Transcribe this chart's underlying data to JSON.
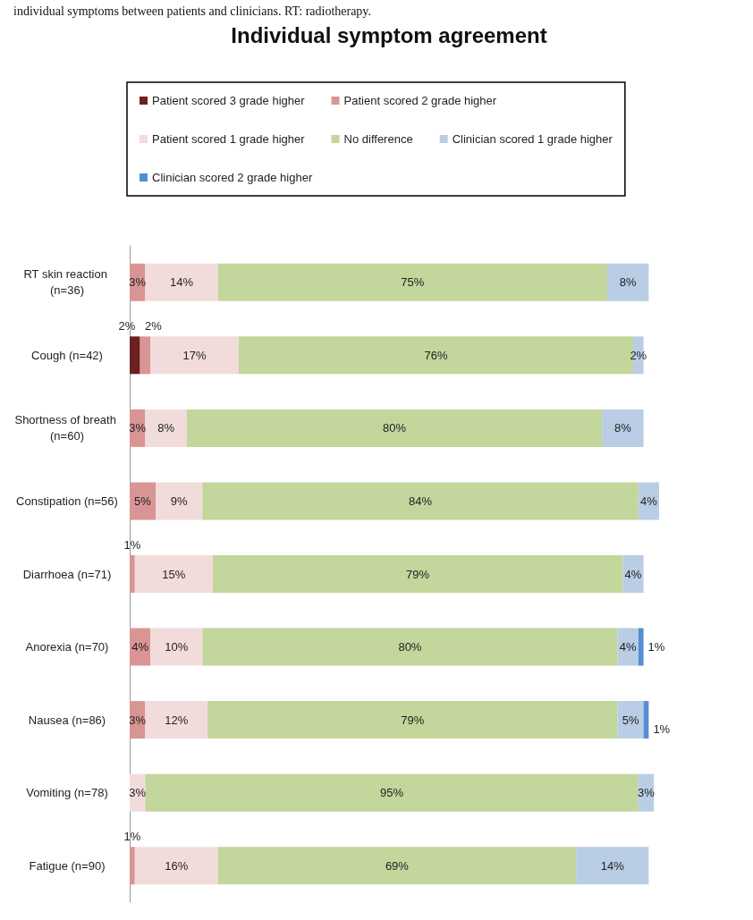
{
  "chart_data": {
    "type": "bar",
    "orientation": "horizontal",
    "stacked": true,
    "legend": "top",
    "title": "Individual symptom agreement",
    "annotations": [
      "individual symptoms between patients and clinicians. RT: radiotherapy."
    ],
    "categories": [
      "RT skin reaction (n=36)",
      "Cough (n=42)",
      "Shortness of breath (n=60)",
      "Constipation (n=56)",
      "Diarrhoea (n=71)",
      "Anorexia (n=70)",
      "Nausea (n=86)",
      "Vomiting (n=78)",
      "Fatigue (n=90)"
    ],
    "series": [
      {
        "name": "Patient scored 3 grade higher",
        "color": "#6b1f1f",
        "values": [
          null,
          2,
          null,
          null,
          null,
          null,
          null,
          null,
          null
        ],
        "value_labels": [
          null,
          "2%",
          null,
          null,
          null,
          null,
          null,
          null,
          null
        ]
      },
      {
        "name": "Patient scored 2 grade higher",
        "color": "#d99594",
        "values": [
          3,
          2,
          3,
          5,
          1,
          4,
          3,
          null,
          1
        ],
        "value_labels": [
          "3%",
          "2%",
          "3%",
          "5%",
          "1%",
          "4%",
          "3%",
          null,
          "1%"
        ]
      },
      {
        "name": "Patient scored 1 grade higher",
        "color": "#f2dcdb",
        "values": [
          14,
          17,
          8,
          9,
          15,
          10,
          12,
          3,
          16
        ],
        "value_labels": [
          "14%",
          "17%",
          "8%",
          "9%",
          "15%",
          "10%",
          "12%",
          "3%",
          "16%"
        ]
      },
      {
        "name": "No difference",
        "color": "#c3d69b",
        "values": [
          75,
          76,
          80,
          84,
          79,
          80,
          79,
          95,
          69
        ],
        "value_labels": [
          "75%",
          "76%",
          "80%",
          "84%",
          "79%",
          "80%",
          "79%",
          "95%",
          "69%"
        ]
      },
      {
        "name": "Clinician scored 1 grade higher",
        "color": "#b9cde5",
        "values": [
          8,
          2,
          8,
          4,
          4,
          4,
          5,
          3,
          14
        ],
        "value_labels": [
          "8%",
          "2%",
          "8%",
          "4%",
          "4%",
          "4%",
          "5%",
          "3%",
          "14%"
        ]
      },
      {
        "name": "Clinician scored 2 grade higher",
        "color": "#558ed5",
        "values": [
          null,
          null,
          null,
          null,
          null,
          1,
          1,
          null,
          null
        ],
        "value_labels": [
          null,
          null,
          null,
          null,
          null,
          "1%",
          "1%",
          null,
          null
        ]
      }
    ]
  }
}
